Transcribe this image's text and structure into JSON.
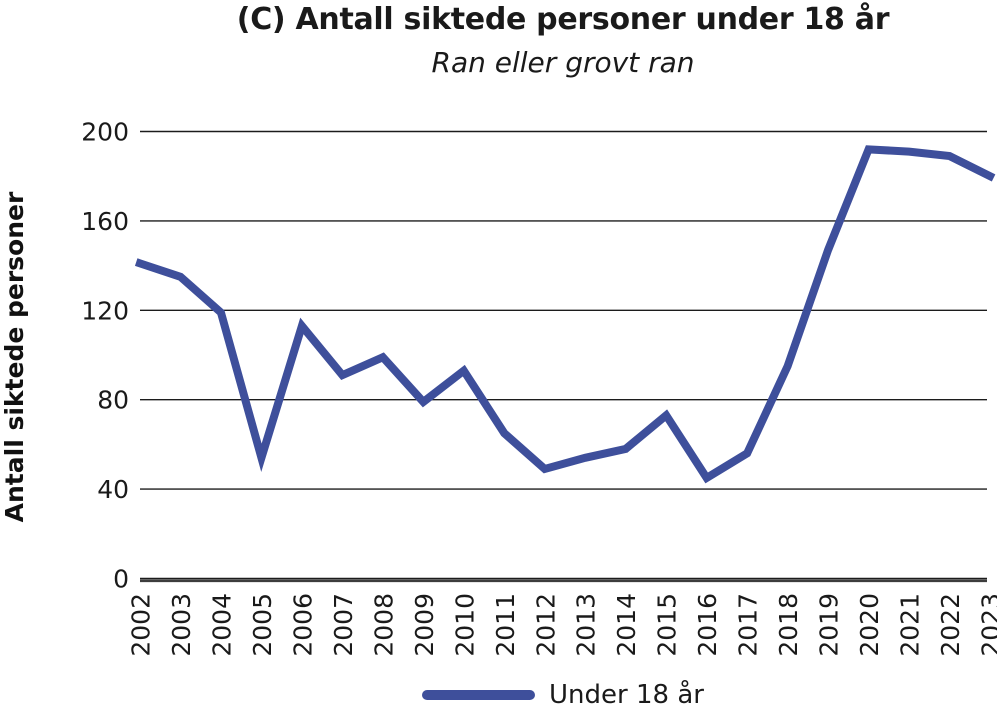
{
  "chart": {
    "title": "(C) Antall siktede personer under 18 år",
    "subtitle": "Ran eller grovt ran",
    "ylabel": "Antall siktede personer",
    "legend_label": "Under 18 år",
    "line_color": "#3E4F9B",
    "grid_color": "#1c1c1c",
    "axis_color": "#3d3d3d",
    "text_color": "#1a1a1a"
  },
  "chart_data": {
    "type": "line",
    "title": "(C) Antall siktede personer under 18 år",
    "subtitle": "Ran eller grovt ran",
    "xlabel": "",
    "ylabel": "Antall siktede personer",
    "x": [
      2002,
      2003,
      2004,
      2005,
      2006,
      2007,
      2008,
      2009,
      2010,
      2011,
      2012,
      2013,
      2014,
      2015,
      2016,
      2017,
      2018,
      2019,
      2020,
      2021,
      2022,
      2023
    ],
    "series": [
      {
        "name": "Under 18 år",
        "values": [
          141,
          135,
          119,
          54,
          113,
          91,
          99,
          79,
          93,
          65,
          49,
          54,
          58,
          73,
          45,
          56,
          95,
          147,
          192,
          191,
          189,
          180
        ]
      }
    ],
    "ylim": [
      0,
      200
    ],
    "yticks": [
      0,
      40,
      80,
      120,
      160,
      200
    ],
    "grid": "horizontal",
    "legend_position": "bottom",
    "x_tick_rotation": 90
  }
}
